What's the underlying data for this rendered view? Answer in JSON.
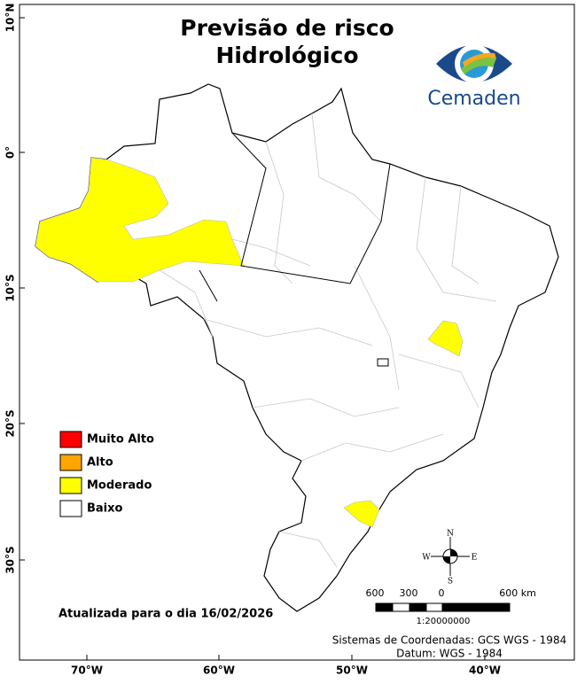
{
  "title": [
    "Previsão de risco",
    "Hidrológico"
  ],
  "logo": "Cemaden",
  "lat_labels": [
    "10°N",
    "0°",
    "10°S",
    "20°S",
    "30°S"
  ],
  "lon_labels": [
    "70°W",
    "60°W",
    "50°W",
    "40°W"
  ],
  "legend": [
    {
      "label": "Muito Alto",
      "color": "#ff0000"
    },
    {
      "label": "Alto",
      "color": "#ffa500"
    },
    {
      "label": "Moderado",
      "color": "#ffff00"
    },
    {
      "label": "Baixo",
      "color": "#ffffff"
    }
  ],
  "updated": "Atualizada para o dia 16/02/2026",
  "scale": {
    "labels": [
      "600",
      "300",
      "0",
      "600 km"
    ],
    "ratio": "1:20000000"
  },
  "compass": {
    "n": "N",
    "e": "E",
    "s": "S",
    "w": "W"
  },
  "coordinate_system": [
    "Sistemas de Coordenadas: GCS WGS - 1984",
    "Datum: WGS - 1984"
  ]
}
